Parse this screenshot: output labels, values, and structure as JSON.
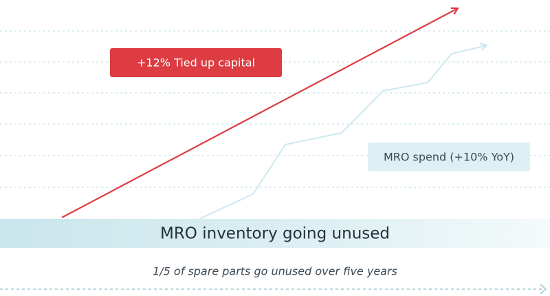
{
  "labels": {
    "capital": "+12% Tied up capital",
    "spend": "MRO spend (+10% YoY)"
  },
  "banner": "MRO inventory going unused",
  "caption": "1/5 of spare parts go unused over five years"
}
